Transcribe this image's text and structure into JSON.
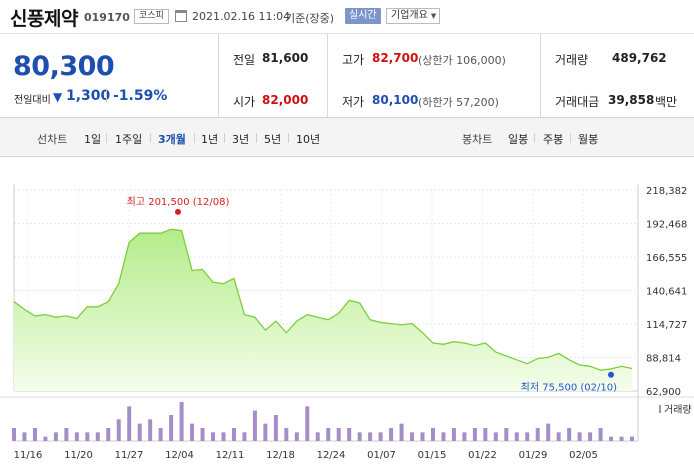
{
  "header": {
    "stock_name": "신풍제약",
    "stock_code": "019170",
    "market": "코스피",
    "date": "2021.02.16 11:04",
    "date_suffix": "기준(장중)",
    "realtime": "실시간",
    "company_overview": "기업개요"
  },
  "summary": {
    "current_price": "80,300",
    "change_label": "전일대비",
    "change_value": "1,300",
    "change_pct": "-1.59%",
    "prev_close_label": "전일",
    "prev_close": "81,600",
    "high_label": "고가",
    "high": "82,700",
    "upper_limit": "(상한가 106,000)",
    "volume_label": "거래량",
    "volume": "489,762",
    "open_label": "시가",
    "open": "82,000",
    "low_label": "저가",
    "low": "80,100",
    "lower_limit": "(하한가 57,200)",
    "amount_label": "거래대금",
    "amount": "39,858",
    "amount_unit": "백만"
  },
  "range_bar": {
    "line_label": "선차트",
    "line_ranges": [
      "1일",
      "1주일",
      "3개월",
      "1년",
      "3년",
      "5년",
      "10년"
    ],
    "active_range": "3개월",
    "candle_label": "봉차트",
    "candle_ranges": [
      "일봉",
      "주봉",
      "월봉"
    ]
  },
  "chart_data": {
    "type": "area",
    "y_ticks": [
      "218,382",
      "192,468",
      "166,555",
      "140,641",
      "114,727",
      "88,814",
      "62,900"
    ],
    "ylim": [
      62900,
      218382
    ],
    "x_tick_labels": [
      "11/16",
      "11/20",
      "11/27",
      "12/04",
      "12/11",
      "12/18",
      "12/24",
      "01/07",
      "01/15",
      "01/22",
      "01/29",
      "02/05"
    ],
    "high_annotation": "최고 201,500 (12/08)",
    "low_annotation": "최저 75,500 (02/10)",
    "volume_legend": "거래량",
    "price_values": [
      132000,
      126000,
      121000,
      122000,
      120000,
      121000,
      119000,
      128000,
      128000,
      132000,
      146000,
      178000,
      185000,
      185000,
      185000,
      188000,
      187000,
      156000,
      157000,
      147000,
      146000,
      150000,
      122000,
      120000,
      110000,
      117000,
      108000,
      117000,
      122000,
      120000,
      118000,
      123000,
      133000,
      131000,
      118000,
      116000,
      115000,
      114000,
      115000,
      108000,
      100000,
      99000,
      101000,
      100000,
      98000,
      100000,
      93000,
      90000,
      87000,
      84000,
      88000,
      89000,
      92000,
      87000,
      83000,
      82000,
      79000,
      80000,
      82000,
      80300
    ],
    "volume_values": [
      3,
      2,
      3,
      1,
      2,
      3,
      2,
      2,
      2,
      3,
      5,
      8,
      4,
      5,
      3,
      6,
      9,
      4,
      3,
      2,
      2,
      3,
      2,
      7,
      4,
      6,
      3,
      2,
      8,
      2,
      3,
      3,
      3,
      2,
      2,
      2,
      3,
      4,
      2,
      2,
      3,
      2,
      3,
      2,
      3,
      3,
      2,
      3,
      2,
      2,
      3,
      4,
      2,
      3,
      2,
      2,
      3,
      1,
      1,
      1
    ],
    "colors": {
      "line": "#7cce3c",
      "fill_top": "#b4ec8a",
      "fill_bottom": "#f4fdea",
      "volume": "#a58dc8",
      "high_marker": "#d32121",
      "low_marker": "#2157d3"
    }
  }
}
